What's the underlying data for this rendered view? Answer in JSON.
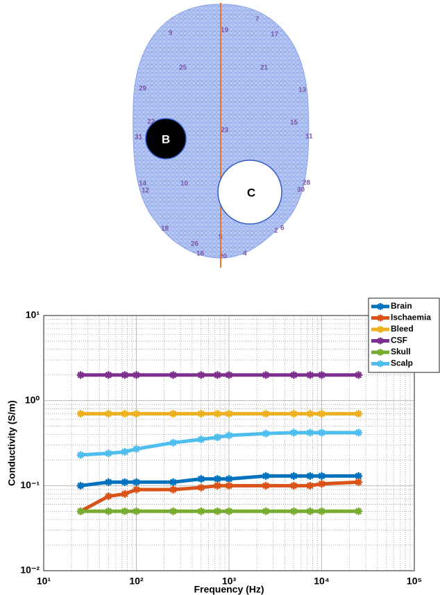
{
  "diagram": {
    "markers": [
      "B",
      "C"
    ],
    "electrodes": [
      "7",
      "19",
      "17",
      "9",
      "25",
      "21",
      "13",
      "29",
      "23",
      "15",
      "11",
      "22",
      "31",
      "14",
      "10",
      "12",
      "28",
      "30",
      "18",
      "2",
      "6",
      "5",
      "26",
      "20",
      "4",
      "16"
    ]
  },
  "chart_data": {
    "type": "line",
    "log_x": true,
    "log_y": true,
    "grid": true,
    "minor_grid": true,
    "legend": "upper right",
    "xlabel": "Frequency (Hz)",
    "ylabel": "Conductivity (S/m)",
    "x": [
      25,
      50,
      75,
      100,
      250,
      500,
      750,
      1000,
      2500,
      5000,
      7500,
      10000,
      25000
    ],
    "xlim": [
      10,
      100000
    ],
    "xticks": [
      {
        "value": 10,
        "label": "10¹"
      },
      {
        "value": 100,
        "label": "10²"
      },
      {
        "value": 1000,
        "label": "10³"
      },
      {
        "value": 10000,
        "label": "10⁴"
      },
      {
        "value": 100000,
        "label": "10⁵"
      }
    ],
    "ylim": [
      0.01,
      10
    ],
    "yticks": [
      {
        "value": 0.01,
        "label": "10⁻²"
      },
      {
        "value": 0.1,
        "label": "10⁻¹"
      },
      {
        "value": 1,
        "label": "10⁰"
      },
      {
        "value": 10,
        "label": "10¹"
      }
    ],
    "series": [
      {
        "name": "Brain",
        "color": "#0072BD",
        "values": [
          0.1,
          0.11,
          0.11,
          0.11,
          0.11,
          0.12,
          0.12,
          0.12,
          0.13,
          0.13,
          0.13,
          0.13,
          0.13
        ]
      },
      {
        "name": "Ischaemia",
        "color": "#D95319",
        "values": [
          0.05,
          0.075,
          0.08,
          0.09,
          0.09,
          0.095,
          0.1,
          0.1,
          0.1,
          0.1,
          0.1,
          0.105,
          0.11
        ]
      },
      {
        "name": "Bleed",
        "color": "#EDB120",
        "values": [
          0.7,
          0.7,
          0.7,
          0.7,
          0.7,
          0.7,
          0.7,
          0.7,
          0.7,
          0.7,
          0.7,
          0.7,
          0.7
        ]
      },
      {
        "name": "CSF",
        "color": "#7E2F8E",
        "values": [
          2,
          2,
          2,
          2,
          2,
          2,
          2,
          2,
          2,
          2,
          2,
          2,
          2
        ]
      },
      {
        "name": "Skull",
        "color": "#77AC30",
        "values": [
          0.05,
          0.05,
          0.05,
          0.05,
          0.05,
          0.05,
          0.05,
          0.05,
          0.05,
          0.05,
          0.05,
          0.05,
          0.05
        ]
      },
      {
        "name": "Scalp",
        "color": "#4DBEEE",
        "values": [
          0.23,
          0.24,
          0.25,
          0.27,
          0.32,
          0.35,
          0.37,
          0.39,
          0.41,
          0.42,
          0.42,
          0.42,
          0.42
        ]
      }
    ]
  }
}
